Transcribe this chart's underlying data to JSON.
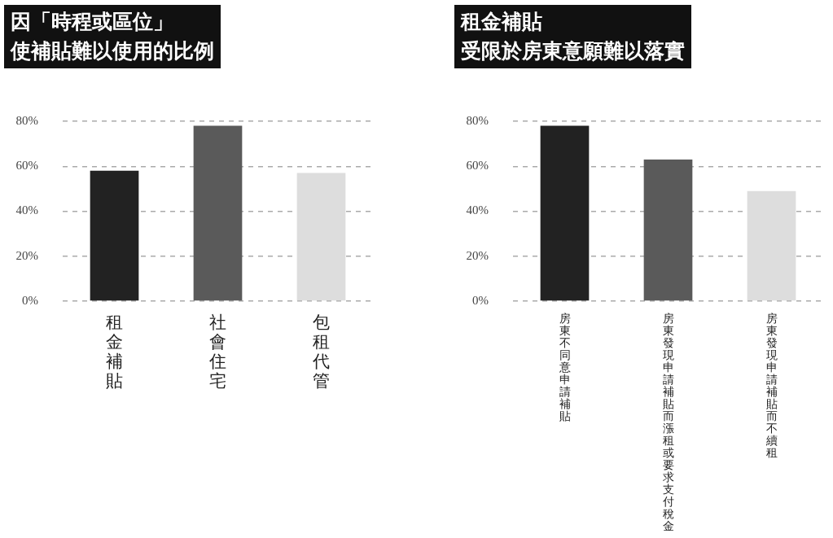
{
  "chart_data": [
    {
      "type": "bar",
      "title": "因「時程或區位」",
      "subtitle": "使補貼難以使用的比例",
      "categories": [
        "租金補貼",
        "社會住宅",
        "包租代管"
      ],
      "values": [
        58,
        78,
        57
      ],
      "colors": [
        "#222222",
        "#5a5a5a",
        "#dddddd"
      ],
      "ylim": [
        0,
        80
      ],
      "yticks": [
        {
          "value": 0,
          "label": "0%"
        },
        {
          "value": 20,
          "label": "20%"
        },
        {
          "value": 40,
          "label": "40%"
        },
        {
          "value": 60,
          "label": "60%"
        },
        {
          "value": 80,
          "label": "80%"
        }
      ],
      "grid": "y"
    },
    {
      "type": "bar",
      "title": "租金補貼",
      "subtitle": "受限於房東意願難以落實",
      "categories": [
        "房東不同意申請補貼",
        "房東發現申請補貼而漲租或要求支付稅金",
        "房東發現申請補貼而不續租"
      ],
      "values": [
        78,
        63,
        49
      ],
      "colors": [
        "#222222",
        "#5a5a5a",
        "#dddddd"
      ],
      "ylim": [
        0,
        80
      ],
      "yticks": [
        {
          "value": 0,
          "label": "0%"
        },
        {
          "value": 20,
          "label": "20%"
        },
        {
          "value": 40,
          "label": "40%"
        },
        {
          "value": 60,
          "label": "60%"
        },
        {
          "value": 80,
          "label": "80%"
        }
      ],
      "grid": "y"
    }
  ]
}
